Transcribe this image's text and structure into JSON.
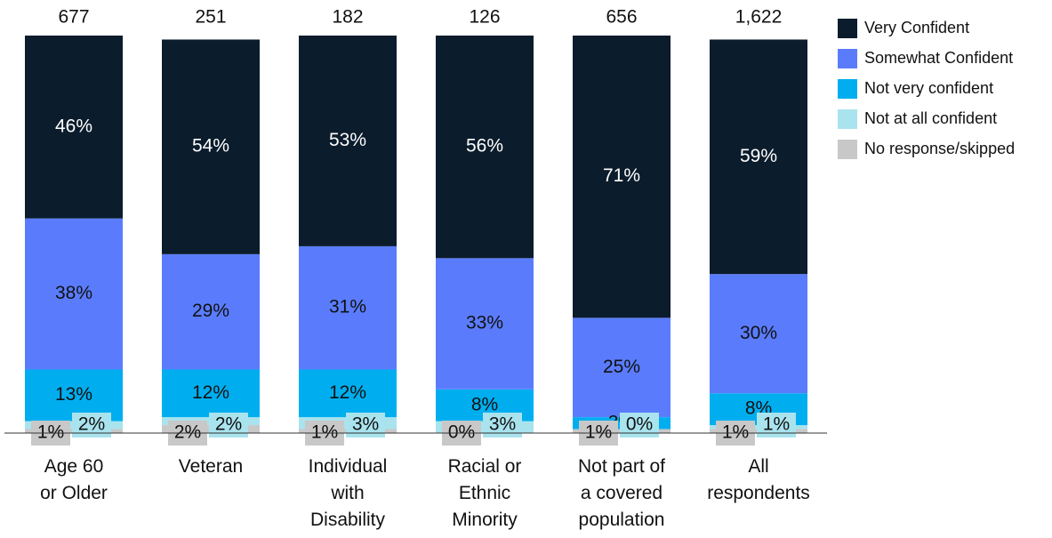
{
  "chart_data": {
    "type": "stacked-bar",
    "categories": [
      "Age 60\nor Older",
      "Veteran",
      "Individual\nwith\nDisability",
      "Racial or\nEthnic\nMinority",
      "Not part of\na covered\npopulation",
      "All\nrespondents"
    ],
    "totals": {
      "values": [
        677,
        251,
        182,
        126,
        656,
        1622
      ],
      "value_labels": [
        "677",
        "251",
        "182",
        "126",
        "656",
        "1,622"
      ]
    },
    "ylim": [
      0,
      100
    ],
    "series": [
      {
        "name": "Very Confident",
        "color": "#0b1c2c",
        "values": [
          46,
          54,
          53,
          56,
          71,
          59
        ],
        "value_labels": [
          "46%",
          "54%",
          "53%",
          "56%",
          "71%",
          "59%"
        ]
      },
      {
        "name": "Somewhat Confident",
        "color": "#5a7cfc",
        "values": [
          38,
          29,
          31,
          33,
          25,
          30
        ],
        "value_labels": [
          "38%",
          "29%",
          "31%",
          "33%",
          "25%",
          "30%"
        ]
      },
      {
        "name": "Not very confident",
        "color": "#00aeef",
        "values": [
          13,
          12,
          12,
          8,
          3,
          8
        ],
        "value_labels": [
          "13%",
          "12%",
          "12%",
          "8%",
          "3%",
          "8%"
        ]
      },
      {
        "name": "Not at all confident",
        "color": "#a9e3ee",
        "values": [
          2,
          2,
          3,
          3,
          0,
          1
        ],
        "value_labels": [
          "2%",
          "2%",
          "3%",
          "3%",
          "0%",
          "1%"
        ]
      },
      {
        "name": "No response/skipped",
        "color": "#c8c8c8",
        "values": [
          1,
          2,
          1,
          0,
          1,
          1
        ],
        "value_labels": [
          "1%",
          "2%",
          "1%",
          "0%",
          "1%",
          "1%"
        ]
      }
    ]
  }
}
